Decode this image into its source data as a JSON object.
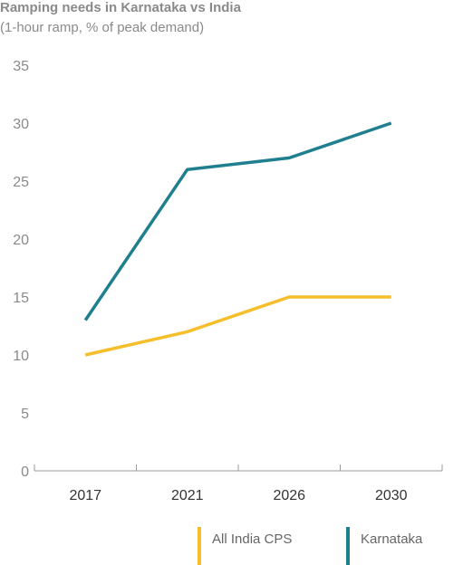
{
  "chart_data": {
    "type": "line",
    "title": "Ramping needs in Karnataka vs India",
    "subtitle": "(1-hour ramp, % of peak demand)",
    "categories": [
      "2017",
      "2021",
      "2026",
      "2030"
    ],
    "yticks": [
      0,
      5,
      10,
      15,
      20,
      25,
      30,
      35
    ],
    "ylim": [
      0,
      35
    ],
    "grid": false,
    "legend_position": "bottom",
    "series": [
      {
        "name": "All India CPS",
        "color": "#f5be2a",
        "values": [
          10,
          12,
          15,
          15
        ]
      },
      {
        "name": "Karnataka",
        "color": "#1f7f8f",
        "values": [
          13,
          26,
          27,
          30
        ]
      }
    ]
  }
}
